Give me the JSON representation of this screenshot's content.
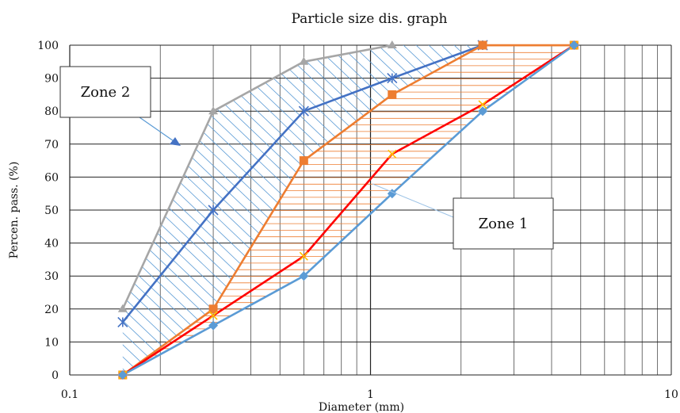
{
  "chart_data": {
    "type": "line",
    "title": "Particle size dis. graph",
    "xlabel": "Diameter (mm)",
    "ylabel": "Percen. pass. (%)",
    "x_scale": "log",
    "xlim": [
      0.1,
      10
    ],
    "ylim": [
      0,
      100
    ],
    "x_ticks": [
      "0.1",
      "1",
      "10"
    ],
    "y_ticks": [
      "0",
      "10",
      "20",
      "30",
      "40",
      "50",
      "60",
      "70",
      "80",
      "90",
      "100"
    ],
    "grid": true,
    "series": [
      {
        "color": "#a6a6a6",
        "marker": "triangle",
        "x": [
          0.15,
          0.3,
          0.6,
          1.18
        ],
        "y": [
          20,
          80,
          95,
          100
        ]
      },
      {
        "color": "#4472c4",
        "marker": "asterisk",
        "x": [
          0.15,
          0.3,
          0.6,
          1.18,
          2.36
        ],
        "y": [
          16,
          50,
          80,
          90,
          100
        ]
      },
      {
        "color": "#ed7d31",
        "marker": "square",
        "x": [
          0.15,
          0.3,
          0.6,
          1.18,
          2.36,
          4.75
        ],
        "y": [
          0,
          20,
          65,
          85,
          100,
          100
        ]
      },
      {
        "color": "#ff0000",
        "marker": "x",
        "x": [
          0.15,
          0.3,
          0.6,
          1.18,
          2.36,
          4.75
        ],
        "y": [
          0,
          18,
          36,
          67,
          82,
          100
        ]
      },
      {
        "color": "#5b9bd5",
        "marker": "diamond",
        "x": [
          0.15,
          0.3,
          0.6,
          1.18,
          2.36,
          4.75
        ],
        "y": [
          0,
          15,
          30,
          55,
          80,
          100
        ]
      }
    ],
    "annotations": [
      {
        "text": "Zone 2"
      },
      {
        "text": "Zone 1"
      }
    ]
  }
}
